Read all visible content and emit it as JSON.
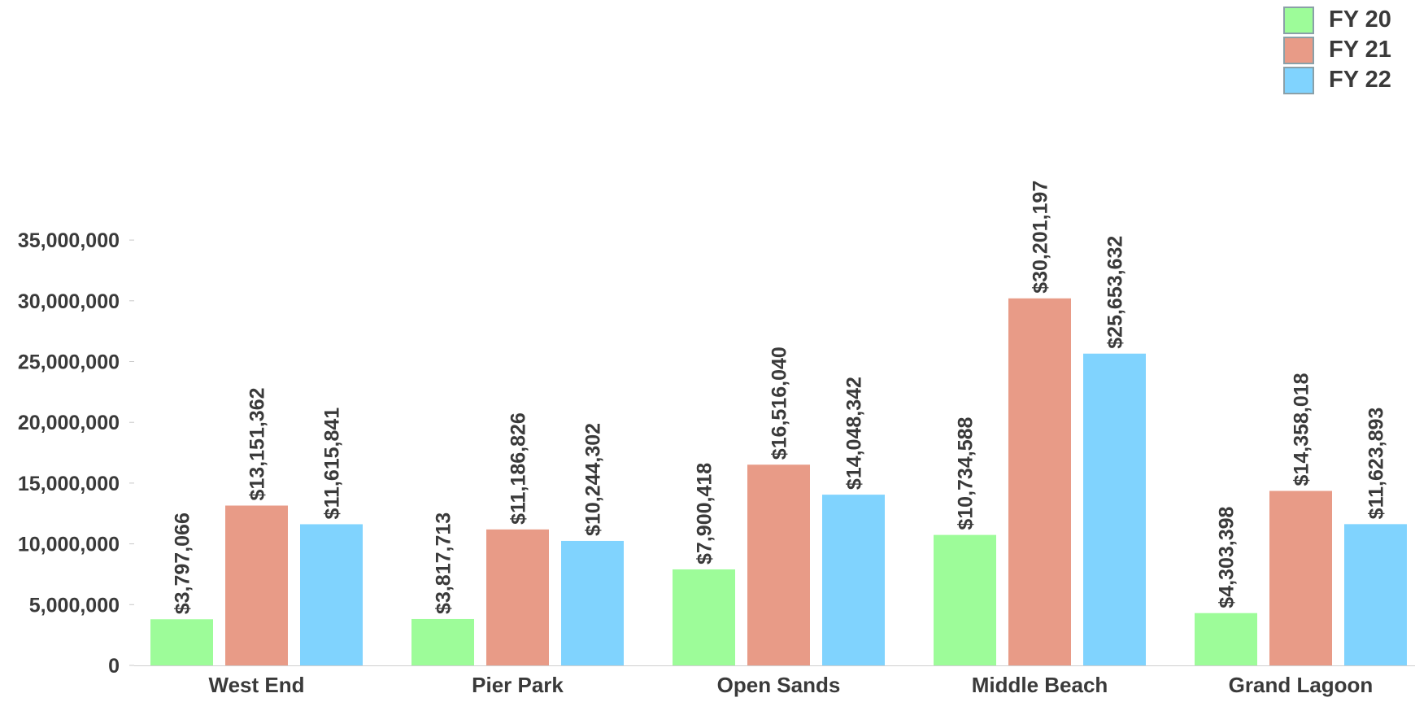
{
  "chart_data": {
    "type": "bar",
    "categories": [
      "West End",
      "Pier Park",
      "Open Sands",
      "Middle Beach",
      "Grand Lagoon"
    ],
    "series": [
      {
        "name": "FY 20",
        "color": "#9dfc99",
        "values": [
          3797066,
          3817713,
          7900418,
          10734588,
          4303398
        ],
        "labels": [
          "$3,797,066",
          "$3,817,713",
          "$7,900,418",
          "$10,734,588",
          "$4,303,398"
        ]
      },
      {
        "name": "FY 21",
        "color": "#e89b87",
        "values": [
          13151362,
          11186826,
          16516040,
          30201197,
          14358018
        ],
        "labels": [
          "$13,151,362",
          "$11,186,826",
          "$16,516,040",
          "$30,201,197",
          "$14,358,018"
        ]
      },
      {
        "name": "FY 22",
        "color": "#80d3fe",
        "values": [
          11615841,
          10244302,
          14048342,
          25653632,
          11623893
        ],
        "labels": [
          "$11,615,841",
          "$10,244,302",
          "$14,048,342",
          "$25,653,632",
          "$11,623,893"
        ]
      }
    ],
    "y_ticks": [
      {
        "value": 0,
        "label": "0"
      },
      {
        "value": 5000000,
        "label": "5,000,000"
      },
      {
        "value": 10000000,
        "label": "10,000,000"
      },
      {
        "value": 15000000,
        "label": "15,000,000"
      },
      {
        "value": 20000000,
        "label": "20,000,000"
      },
      {
        "value": 25000000,
        "label": "25,000,000"
      },
      {
        "value": 30000000,
        "label": "30,000,000"
      },
      {
        "value": 35000000,
        "label": "35,000,000"
      }
    ],
    "ylim": [
      0,
      35000000
    ],
    "title": "",
    "xlabel": "",
    "ylabel": "",
    "grid": false,
    "legend_position": "top-right"
  }
}
